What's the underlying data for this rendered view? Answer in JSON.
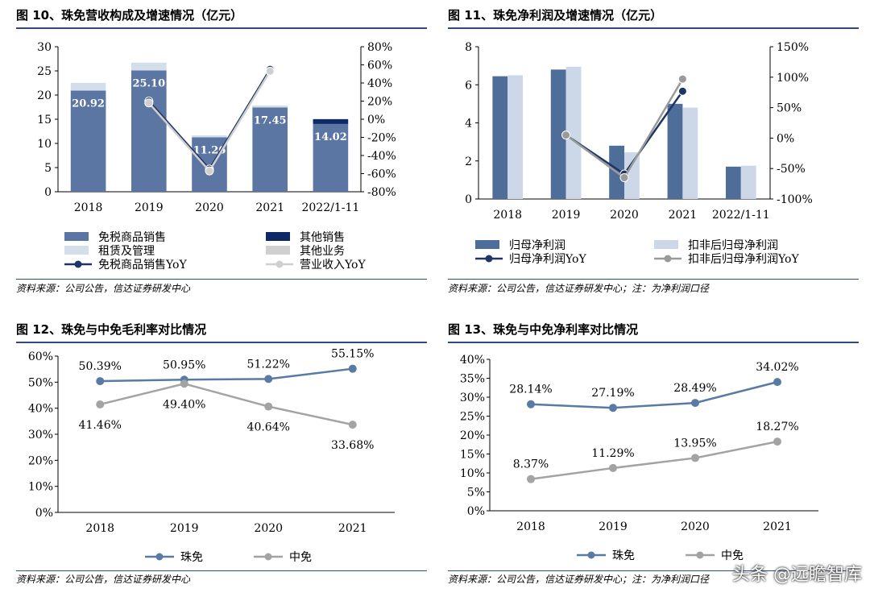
{
  "watermark": "头条 @远瞻智库",
  "chart_data": [
    {
      "type": "bar",
      "title": "图 10、珠免营收构成及增速情况（亿元）",
      "source": "资料来源：公司公告，信达证券研发中心",
      "categories": [
        "2018",
        "2019",
        "2020",
        "2021",
        "2022/1-11"
      ],
      "ylim": [
        0,
        30
      ],
      "yticks": [
        "0",
        "5",
        "10",
        "15",
        "20",
        "25",
        "30"
      ],
      "y2lim": [
        -80,
        80
      ],
      "y2ticks": [
        "-80%",
        "-60%",
        "-40%",
        "-20%",
        "0%",
        "20%",
        "40%",
        "60%",
        "80%"
      ],
      "stacked": true,
      "series": [
        {
          "name": "免税商品销售",
          "kind": "bar",
          "color": "#5b76a3",
          "values": [
            20.92,
            25.1,
            11.26,
            17.45,
            14.02
          ],
          "labels": [
            "20.92",
            "25.10",
            "11.26",
            "17.45",
            "14.02"
          ]
        },
        {
          "name": "其他销售",
          "kind": "bar",
          "color": "#0d2a66",
          "values": [
            0,
            0,
            0,
            0,
            1.0
          ]
        },
        {
          "name": "租赁及管理",
          "kind": "bar",
          "color": "#d3deeb",
          "values": [
            1.6,
            1.6,
            0.4,
            0.4,
            0
          ]
        },
        {
          "name": "其他业务",
          "kind": "bar",
          "color": "#d0d0d0",
          "values": [
            0,
            0,
            0,
            0,
            0
          ]
        },
        {
          "name": "免税商品销售YoY",
          "kind": "line",
          "axis": "y2",
          "color": "#1f3566",
          "values": [
            null,
            20,
            -55,
            55,
            null
          ]
        },
        {
          "name": "营业收入YoY",
          "kind": "line",
          "axis": "y2",
          "color": "#cfcfcf",
          "values": [
            null,
            18,
            -57,
            53,
            null
          ]
        }
      ]
    },
    {
      "type": "bar",
      "title": "图 11、珠免净利润及增速情况（亿元）",
      "source": "资料来源：公司公告，信达证券研发中心；注：为净利润口径",
      "categories": [
        "2018",
        "2019",
        "2020",
        "2021",
        "2022/1-11"
      ],
      "ylim": [
        0,
        8
      ],
      "yticks": [
        "0",
        "2",
        "4",
        "6",
        "8"
      ],
      "y2lim": [
        -100,
        150
      ],
      "y2ticks": [
        "-100%",
        "-50%",
        "0%",
        "50%",
        "100%",
        "150%"
      ],
      "series": [
        {
          "name": "归母净利润",
          "kind": "bar",
          "color": "#4f6d99",
          "values": [
            6.45,
            6.8,
            2.8,
            5.0,
            1.7
          ]
        },
        {
          "name": "扣非后归母净利润",
          "kind": "bar",
          "color": "#ccd8e8",
          "values": [
            6.5,
            6.95,
            2.45,
            4.8,
            1.75
          ]
        },
        {
          "name": "归母净利润YoY",
          "kind": "line",
          "axis": "y2",
          "color": "#1f3566",
          "values": [
            null,
            5,
            -59,
            77,
            null
          ]
        },
        {
          "name": "扣非后归母净利润YoY",
          "kind": "line",
          "axis": "y2",
          "color": "#9a9a9a",
          "values": [
            null,
            5,
            -65,
            97,
            null
          ]
        }
      ]
    },
    {
      "type": "line",
      "title": "图 12、珠免与中免毛利率对比情况",
      "source": "资料来源：公司公告，信达证券研发中心",
      "categories": [
        "2018",
        "2019",
        "2020",
        "2021"
      ],
      "ylim": [
        0,
        60
      ],
      "yticks": [
        "0%",
        "10%",
        "20%",
        "30%",
        "40%",
        "50%",
        "60%"
      ],
      "series": [
        {
          "name": "珠免",
          "color": "#587aa3",
          "values": [
            50.39,
            50.95,
            51.22,
            55.15
          ],
          "labels": [
            "50.39%",
            "50.95%",
            "51.22%",
            "55.15%"
          ],
          "label_pos": "above"
        },
        {
          "name": "中免",
          "color": "#a3a3a3",
          "values": [
            41.46,
            49.4,
            40.64,
            33.68
          ],
          "labels": [
            "41.46%",
            "49.40%",
            "40.64%",
            "33.68%"
          ],
          "label_pos": "below"
        }
      ]
    },
    {
      "type": "line",
      "title": "图 13、珠免与中免净利率对比情况",
      "source": "资料来源：公司公告，信达证券研发中心；注：为净利润口径",
      "categories": [
        "2018",
        "2019",
        "2020",
        "2021"
      ],
      "ylim": [
        0,
        40
      ],
      "yticks": [
        "0%",
        "5%",
        "10%",
        "15%",
        "20%",
        "25%",
        "30%",
        "35%",
        "40%"
      ],
      "series": [
        {
          "name": "珠免",
          "color": "#587aa3",
          "values": [
            28.14,
            27.19,
            28.49,
            34.02
          ],
          "labels": [
            "28.14%",
            "27.19%",
            "28.49%",
            "34.02%"
          ],
          "label_pos": "above"
        },
        {
          "name": "中免",
          "color": "#a3a3a3",
          "values": [
            8.37,
            11.29,
            13.95,
            18.27
          ],
          "labels": [
            "8.37%",
            "11.29%",
            "13.95%",
            "18.27%"
          ],
          "label_pos": "above"
        }
      ]
    }
  ]
}
